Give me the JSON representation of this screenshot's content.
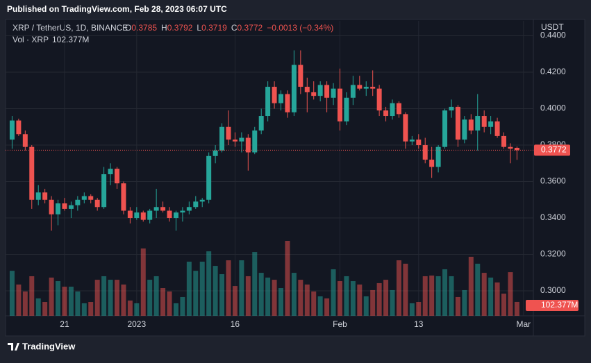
{
  "header": {
    "published": "Published on TradingView.com, Feb 28, 2023 06:07 UTC"
  },
  "footer": {
    "brand": "TradingView"
  },
  "chart_data": {
    "type": "candlestick",
    "symbol": "XRP / TetherUS, 1D, BINANCE",
    "ohlc_labels": [
      "O",
      "H",
      "L",
      "C"
    ],
    "change": "−0.0013 (−0.34%)",
    "volume_title": "Vol · XRP",
    "axis_unit": "USDT",
    "up_color": "#26a69a",
    "down_color": "#ef5350",
    "ylim": [
      0.2863,
      0.4482
    ],
    "yticks": [
      {
        "value": 0.3,
        "label": "0.3000"
      },
      {
        "value": 0.32,
        "label": "0.3200"
      },
      {
        "value": 0.34,
        "label": "0.3400"
      },
      {
        "value": 0.36,
        "label": "0.3600"
      },
      {
        "value": 0.38,
        "label": "0.3800"
      },
      {
        "value": 0.4,
        "label": "0.4000"
      },
      {
        "value": 0.42,
        "label": "0.4200"
      },
      {
        "value": 0.44,
        "label": "0.4400"
      }
    ],
    "xlim": [
      -1,
      79.5
    ],
    "xticks": [
      {
        "value": 8,
        "label": "21"
      },
      {
        "value": 19,
        "label": "2023"
      },
      {
        "value": 34,
        "label": "16"
      },
      {
        "value": 50,
        "label": "Feb"
      },
      {
        "value": 62,
        "label": "13"
      },
      {
        "value": 78,
        "label": "Mar"
      }
    ],
    "ohlc": [
      [
        0.383,
        0.396,
        0.378,
        0.3935
      ],
      [
        0.3935,
        0.3945,
        0.385,
        0.386
      ],
      [
        0.386,
        0.388,
        0.377,
        0.379
      ],
      [
        0.379,
        0.38,
        0.345,
        0.35
      ],
      [
        0.35,
        0.358,
        0.347,
        0.354
      ],
      [
        0.354,
        0.356,
        0.348,
        0.35
      ],
      [
        0.35,
        0.352,
        0.333,
        0.342
      ],
      [
        0.342,
        0.35,
        0.336,
        0.348
      ],
      [
        0.348,
        0.351,
        0.344,
        0.345
      ],
      [
        0.345,
        0.349,
        0.34,
        0.347
      ],
      [
        0.347,
        0.352,
        0.344,
        0.35
      ],
      [
        0.35,
        0.354,
        0.348,
        0.352
      ],
      [
        0.352,
        0.353,
        0.348,
        0.35
      ],
      [
        0.35,
        0.351,
        0.344,
        0.346
      ],
      [
        0.346,
        0.368,
        0.345,
        0.364
      ],
      [
        0.364,
        0.37,
        0.358,
        0.367
      ],
      [
        0.367,
        0.368,
        0.356,
        0.359
      ],
      [
        0.359,
        0.36,
        0.342,
        0.344
      ],
      [
        0.344,
        0.346,
        0.337,
        0.34
      ],
      [
        0.34,
        0.346,
        0.339,
        0.343
      ],
      [
        0.343,
        0.344,
        0.338,
        0.339
      ],
      [
        0.339,
        0.345,
        0.337,
        0.344
      ],
      [
        0.344,
        0.356,
        0.34,
        0.346
      ],
      [
        0.346,
        0.349,
        0.343,
        0.344
      ],
      [
        0.344,
        0.346,
        0.338,
        0.34
      ],
      [
        0.34,
        0.344,
        0.333,
        0.343
      ],
      [
        0.343,
        0.346,
        0.338,
        0.344
      ],
      [
        0.344,
        0.349,
        0.342,
        0.346
      ],
      [
        0.346,
        0.352,
        0.345,
        0.349
      ],
      [
        0.349,
        0.351,
        0.346,
        0.35
      ],
      [
        0.35,
        0.376,
        0.348,
        0.374
      ],
      [
        0.374,
        0.38,
        0.37,
        0.377
      ],
      [
        0.377,
        0.392,
        0.376,
        0.39
      ],
      [
        0.39,
        0.399,
        0.38,
        0.383
      ],
      [
        0.383,
        0.387,
        0.379,
        0.382
      ],
      [
        0.382,
        0.387,
        0.376,
        0.384
      ],
      [
        0.384,
        0.386,
        0.366,
        0.376
      ],
      [
        0.376,
        0.39,
        0.375,
        0.388
      ],
      [
        0.388,
        0.4,
        0.386,
        0.396
      ],
      [
        0.396,
        0.415,
        0.393,
        0.412
      ],
      [
        0.412,
        0.415,
        0.4,
        0.403
      ],
      [
        0.403,
        0.41,
        0.399,
        0.408
      ],
      [
        0.408,
        0.41,
        0.395,
        0.398
      ],
      [
        0.398,
        0.432,
        0.396,
        0.424
      ],
      [
        0.424,
        0.432,
        0.408,
        0.412
      ],
      [
        0.412,
        0.417,
        0.398,
        0.409
      ],
      [
        0.409,
        0.415,
        0.405,
        0.407
      ],
      [
        0.407,
        0.415,
        0.404,
        0.413
      ],
      [
        0.413,
        0.415,
        0.398,
        0.406
      ],
      [
        0.406,
        0.414,
        0.402,
        0.411
      ],
      [
        0.411,
        0.422,
        0.388,
        0.393
      ],
      [
        0.393,
        0.409,
        0.391,
        0.406
      ],
      [
        0.406,
        0.418,
        0.402,
        0.413
      ],
      [
        0.413,
        0.418,
        0.41,
        0.411
      ],
      [
        0.411,
        0.415,
        0.407,
        0.412
      ],
      [
        0.412,
        0.421,
        0.407,
        0.411
      ],
      [
        0.411,
        0.413,
        0.396,
        0.399
      ],
      [
        0.399,
        0.401,
        0.393,
        0.396
      ],
      [
        0.396,
        0.405,
        0.394,
        0.403
      ],
      [
        0.403,
        0.404,
        0.395,
        0.397
      ],
      [
        0.397,
        0.398,
        0.378,
        0.382
      ],
      [
        0.382,
        0.385,
        0.38,
        0.383
      ],
      [
        0.383,
        0.386,
        0.378,
        0.38
      ],
      [
        0.38,
        0.384,
        0.37,
        0.372
      ],
      [
        0.372,
        0.379,
        0.362,
        0.368
      ],
      [
        0.368,
        0.38,
        0.365,
        0.379
      ],
      [
        0.379,
        0.4,
        0.378,
        0.399
      ],
      [
        0.399,
        0.405,
        0.395,
        0.401
      ],
      [
        0.401,
        0.402,
        0.379,
        0.383
      ],
      [
        0.383,
        0.396,
        0.381,
        0.394
      ],
      [
        0.394,
        0.397,
        0.386,
        0.388
      ],
      [
        0.388,
        0.408,
        0.377,
        0.396
      ],
      [
        0.396,
        0.399,
        0.387,
        0.39
      ],
      [
        0.39,
        0.396,
        0.386,
        0.393
      ],
      [
        0.393,
        0.395,
        0.384,
        0.385
      ],
      [
        0.385,
        0.387,
        0.378,
        0.379
      ],
      [
        0.379,
        0.381,
        0.37,
        0.378
      ],
      [
        0.3785,
        0.3792,
        0.3719,
        0.3772
      ]
    ],
    "close_label": "0.3772",
    "volumes": [
      331000000,
      230000000,
      179000000,
      291000000,
      128000000,
      102000000,
      281000000,
      255000000,
      214000000,
      214000000,
      179000000,
      92000000,
      102000000,
      265000000,
      291000000,
      265000000,
      265000000,
      230000000,
      112000000,
      92000000,
      495000000,
      265000000,
      291000000,
      204000000,
      179000000,
      92000000,
      138000000,
      398000000,
      331000000,
      398000000,
      474000000,
      367000000,
      306000000,
      408000000,
      219000000,
      408000000,
      291000000,
      469000000,
      316000000,
      281000000,
      265000000,
      204000000,
      551000000,
      316000000,
      265000000,
      230000000,
      179000000,
      143000000,
      128000000,
      342000000,
      255000000,
      291000000,
      255000000,
      230000000,
      143000000,
      189000000,
      240000000,
      265000000,
      189000000,
      408000000,
      383000000,
      92000000,
      102000000,
      291000000,
      296000000,
      291000000,
      342000000,
      291000000,
      138000000,
      189000000,
      434000000,
      383000000,
      316000000,
      281000000,
      245000000,
      163000000,
      321000000,
      102377000
    ],
    "volume_label": "102.377M"
  }
}
